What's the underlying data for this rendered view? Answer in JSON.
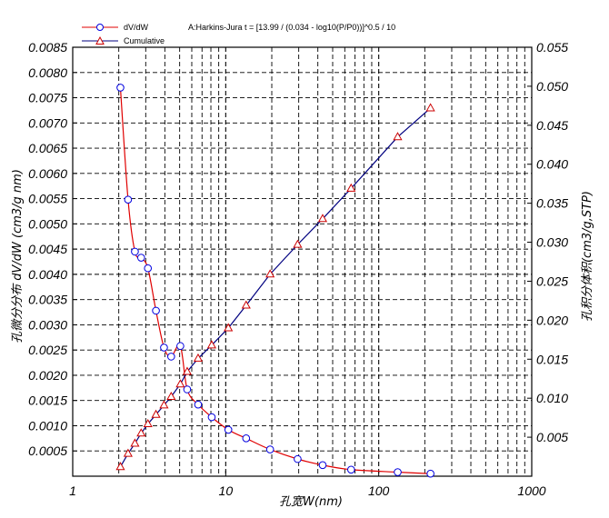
{
  "chart_data": {
    "type": "line",
    "x_scale": "log",
    "xlim": [
      1,
      1000
    ],
    "xlabel": "孔宽W(nm)",
    "x_tick_labels": [
      "1",
      "10",
      "100",
      "1000"
    ],
    "ylabel_left": "孔微分分布 dV/dW (cm3/g nm)",
    "ylim_left": [
      0,
      0.0085
    ],
    "y_left_tick_labels": [
      "0.0005",
      "0.0010",
      "0.0015",
      "0.0020",
      "0.0025",
      "0.0030",
      "0.0035",
      "0.0040",
      "0.0045",
      "0.0050",
      "0.0055",
      "0.0060",
      "0.0065",
      "0.0070",
      "0.0075",
      "0.0080",
      "0.0085"
    ],
    "ylabel_right": "孔积分体积(cm3/g,STP)",
    "ylim_right": [
      0,
      0.055
    ],
    "y_right_tick_labels": [
      "0.005",
      "0.010",
      "0.015",
      "0.020",
      "0.025",
      "0.030",
      "0.035",
      "0.040",
      "0.045",
      "0.050",
      "0.055"
    ],
    "grid": "dashed, vertical at log decades",
    "legend_position": "top-left",
    "annotation": "A:Harkins-Jura  t = [13.99 / (0.034 - log10(P/P0))]^0.5 / 10",
    "series": [
      {
        "name": "dV/dW",
        "axis": "left",
        "color": "#e00000",
        "marker_color": "#0000e0",
        "marker": "circle",
        "x": [
          2.05,
          2.3,
          2.55,
          2.8,
          3.1,
          3.5,
          3.95,
          4.4,
          5.05,
          5.6,
          6.6,
          8.1,
          10.4,
          13.6,
          19.5,
          29.5,
          43,
          66,
          133,
          218
        ],
        "y": [
          0.0077,
          0.00548,
          0.00445,
          0.00433,
          0.00412,
          0.00328,
          0.00255,
          0.00237,
          0.00258,
          0.00172,
          0.00142,
          0.00117,
          0.00092,
          0.00075,
          0.00053,
          0.00034,
          0.00022,
          0.00013,
          8e-05,
          5e-05
        ]
      },
      {
        "name": "Cumulative",
        "axis": "right",
        "color": "#000080",
        "marker_color": "#cc0000",
        "marker": "triangle",
        "x": [
          2.05,
          2.3,
          2.55,
          2.8,
          3.1,
          3.5,
          3.95,
          4.4,
          5.05,
          5.6,
          6.6,
          8.1,
          10.4,
          13.6,
          19.5,
          29.5,
          43,
          66,
          133,
          218
        ],
        "y": [
          0.0012,
          0.0029,
          0.0042,
          0.0055,
          0.0067,
          0.0079,
          0.0091,
          0.0102,
          0.0118,
          0.0134,
          0.0151,
          0.0168,
          0.019,
          0.0219,
          0.0259,
          0.0297,
          0.033,
          0.0369,
          0.0435,
          0.0472
        ]
      }
    ]
  }
}
